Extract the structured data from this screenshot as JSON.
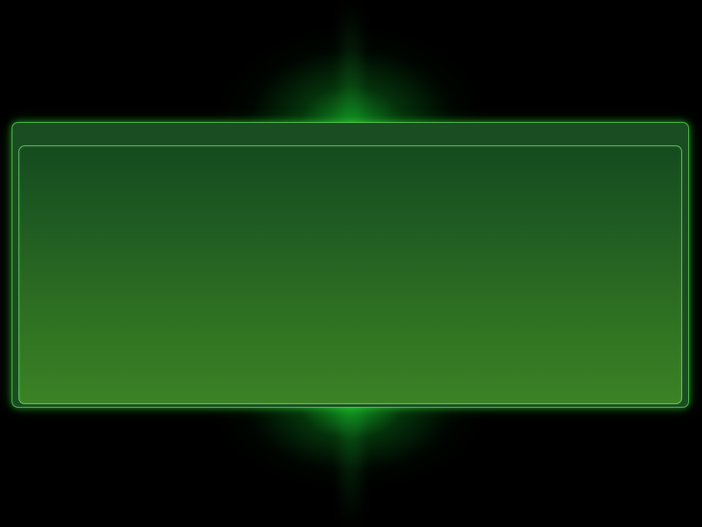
{
  "screen": {
    "background_color": "#000000",
    "accent_color": "#5fd45a"
  },
  "panel": {
    "header": {
      "title": ""
    },
    "content": {
      "text": ""
    }
  }
}
